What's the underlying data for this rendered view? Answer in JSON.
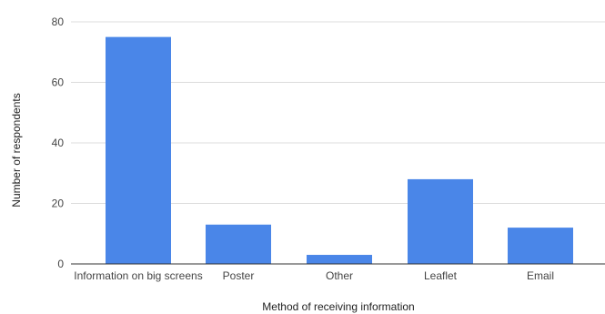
{
  "chart_data": {
    "type": "bar",
    "title": "",
    "xlabel": "Method of receiving information",
    "ylabel": "Number of respondents",
    "categories": [
      "Information on big screens",
      "Poster",
      "Other",
      "Leaflet",
      "Email"
    ],
    "values": [
      75,
      13,
      3,
      28,
      12
    ],
    "ylim": [
      0,
      80
    ],
    "yticks": [
      0,
      20,
      40,
      60,
      80
    ],
    "grid": true,
    "legend": "none",
    "colors": {
      "bar": "#4a86e8",
      "grid": "#dcdcdc",
      "baseline": "#333333"
    }
  }
}
